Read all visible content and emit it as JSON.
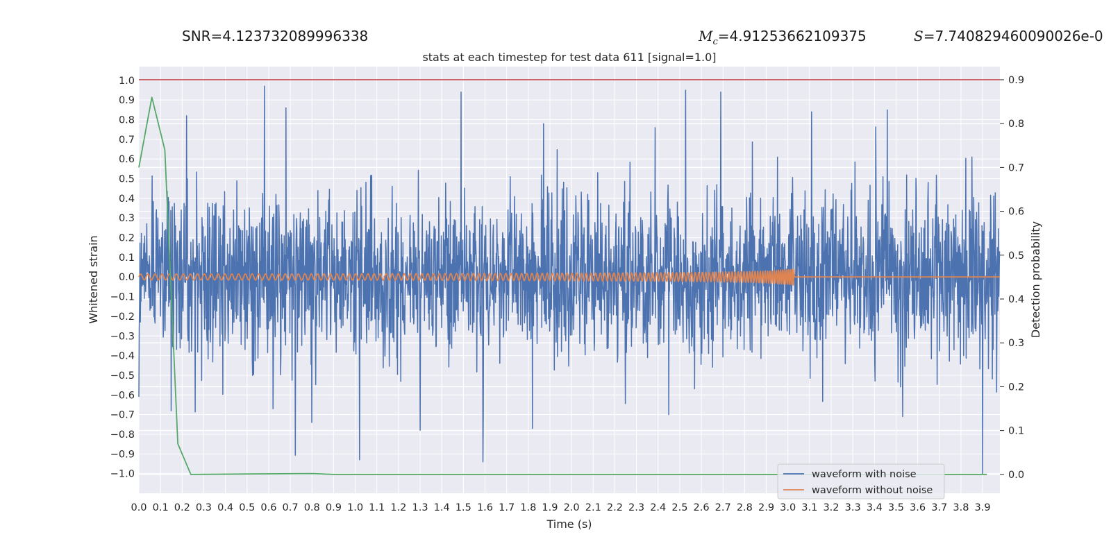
{
  "header": {
    "snr_text": "SNR=4.123732089996338",
    "mc_symbol": "M",
    "mc_subscript": "c",
    "mc_value": "=4.91253662109375",
    "s_symbol": "S",
    "s_value": "=7.740829460090026e-0"
  },
  "chart_data": {
    "type": "line",
    "title": "stats at each timestep for test data 611 [signal=1.0]",
    "xlabel": "Time (s)",
    "ylabel": "Whitened strain",
    "y2label": "Detection probability",
    "xlim": [
      0.0,
      3.98
    ],
    "ylim": [
      -1.1,
      1.07
    ],
    "y2lim": [
      -0.043,
      0.93
    ],
    "xticks": [
      0.0,
      0.1,
      0.2,
      0.3,
      0.4,
      0.5,
      0.6,
      0.7,
      0.8,
      0.9,
      1.0,
      1.1,
      1.2,
      1.3,
      1.4,
      1.5,
      1.6,
      1.7,
      1.8,
      1.9,
      2.0,
      2.1,
      2.2,
      2.3,
      2.4,
      2.5,
      2.6,
      2.7,
      2.8,
      2.9,
      3.0,
      3.1,
      3.2,
      3.3,
      3.4,
      3.5,
      3.6,
      3.7,
      3.8,
      3.9
    ],
    "yticks": [
      1.0,
      0.9,
      0.8,
      0.7,
      0.6,
      0.5,
      0.4,
      0.3,
      0.2,
      0.1,
      0.0,
      -0.1,
      -0.2,
      -0.3,
      -0.4,
      -0.5,
      -0.6,
      -0.7,
      -0.8,
      -0.9,
      -1.0
    ],
    "y2ticks": [
      0.9,
      0.8,
      0.7,
      0.6,
      0.5,
      0.4,
      0.3,
      0.2,
      0.1,
      0.0
    ],
    "grid": true,
    "legend_position": "bottom-right",
    "series": [
      {
        "name": "waveform with noise",
        "axis": "left",
        "color": "#4c72b0",
        "kind": "noise",
        "duration": 3.98,
        "samples": 2400,
        "spikes": [
          {
            "t": 0.58,
            "v": 0.97
          },
          {
            "t": 0.68,
            "v": 0.86
          },
          {
            "t": 0.22,
            "v": 0.82
          },
          {
            "t": 1.49,
            "v": 0.94
          },
          {
            "t": 2.69,
            "v": 0.94
          },
          {
            "t": 1.87,
            "v": 0.78
          },
          {
            "t": 3.46,
            "v": 0.85
          },
          {
            "t": 3.11,
            "v": 0.84
          },
          {
            "t": 3.85,
            "v": 0.61
          },
          {
            "t": 1.02,
            "v": -0.93
          },
          {
            "t": 1.59,
            "v": -0.94
          },
          {
            "t": 3.9,
            "v": -1.0
          },
          {
            "t": 0.8,
            "v": -0.74
          },
          {
            "t": 1.3,
            "v": -0.78
          },
          {
            "t": 0.62,
            "v": -0.67
          },
          {
            "t": 0.15,
            "v": -0.68
          },
          {
            "t": 1.82,
            "v": -0.77
          },
          {
            "t": 3.53,
            "v": -0.71
          },
          {
            "t": 2.45,
            "v": -0.7
          },
          {
            "t": 0.0,
            "v": -0.61
          }
        ]
      },
      {
        "name": "waveform without noise",
        "axis": "left",
        "color": "#dd8452",
        "kind": "chirp",
        "t_merge": 3.03,
        "amp_start": 0.015,
        "amp_peak": 0.12,
        "freq_start": 30,
        "freq_end": 110
      },
      {
        "name": "",
        "axis": "right",
        "color": "#55a868",
        "x": [
          0.0,
          0.06,
          0.12,
          0.18,
          0.24,
          0.8,
          0.9,
          3.92
        ],
        "y": [
          0.7,
          0.86,
          0.74,
          0.07,
          0.0,
          0.002,
          0.0,
          0.0
        ]
      }
    ],
    "threshold": {
      "axis": "right",
      "value": 0.9,
      "color": "#c44e52"
    }
  }
}
